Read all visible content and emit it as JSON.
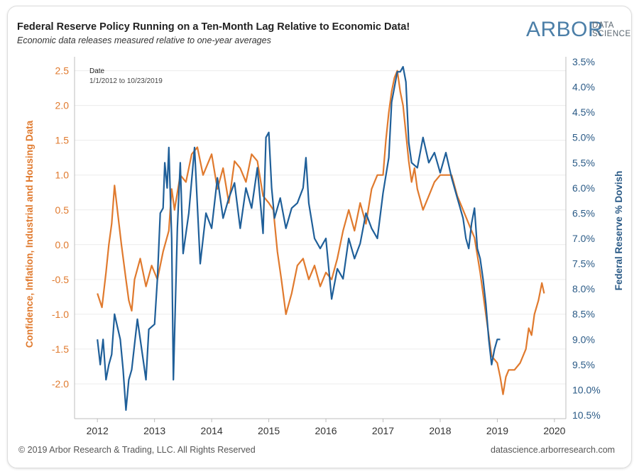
{
  "header": {
    "title": "Federal Reserve Policy Running on a Ten-Month Lag Relative to Economic Data!",
    "subtitle": "Economic data releases measured relative to one-year averages"
  },
  "logo": {
    "main": "ARBOR",
    "sub_line1": "DATA",
    "sub_line2": "SCIENCE"
  },
  "footer": {
    "copyright": "© 2019 Arbor Research & Trading, LLC. All Rights Reserved",
    "website": "datascience.arborresearch.com"
  },
  "colors": {
    "left_series": "#e07a2e",
    "right_series": "#1f5f99",
    "axis_text_left": "#e07a2e",
    "axis_text_right": "#2a5a86"
  },
  "chart_data": {
    "type": "line",
    "title": "Federal Reserve Policy Running on a Ten-Month Lag Relative to Economic Data!",
    "date_filter": {
      "label": "Date",
      "range": "1/1/2012 to 10/23/2019"
    },
    "x_ticks": [
      "2012",
      "2013",
      "2014",
      "2015",
      "2016",
      "2017",
      "2018",
      "2019",
      "2020"
    ],
    "y_left": {
      "label": "Confidence, Inflation, Industrial and Housing Data",
      "ticks": [
        "2.5",
        "2.0",
        "1.5",
        "1.0",
        "0.5",
        "0.0",
        "-0.5",
        "-1.0",
        "-1.5",
        "-2.0"
      ],
      "range": [
        -2.5,
        2.7
      ]
    },
    "y_right": {
      "label": "Federal Reserve % Dovish",
      "ticks": [
        "3.5%",
        "4.0%",
        "4.5%",
        "5.0%",
        "5.5%",
        "6.0%",
        "6.5%",
        "7.0%",
        "7.5%",
        "8.0%",
        "8.5%",
        "9.0%",
        "9.5%",
        "10.0%",
        "10.5%"
      ],
      "range": [
        10.5,
        3.5
      ],
      "inverted": true
    },
    "series": [
      {
        "name": "Confidence, Inflation, Industrial and Housing Data",
        "axis": "left",
        "x": [
          2012.0,
          2012.08,
          2012.15,
          2012.2,
          2012.25,
          2012.3,
          2012.35,
          2012.42,
          2012.5,
          2012.55,
          2012.6,
          2012.65,
          2012.75,
          2012.85,
          2012.95,
          2013.05,
          2013.15,
          2013.25,
          2013.3,
          2013.35,
          2013.45,
          2013.55,
          2013.65,
          2013.75,
          2013.85,
          2013.95,
          2014.0,
          2014.1,
          2014.2,
          2014.3,
          2014.4,
          2014.5,
          2014.6,
          2014.7,
          2014.8,
          2014.9,
          2015.0,
          2015.08,
          2015.15,
          2015.22,
          2015.3,
          2015.4,
          2015.5,
          2015.6,
          2015.7,
          2015.8,
          2015.9,
          2016.0,
          2016.1,
          2016.2,
          2016.3,
          2016.4,
          2016.5,
          2016.6,
          2016.7,
          2016.8,
          2016.9,
          2017.0,
          2017.05,
          2017.1,
          2017.15,
          2017.2,
          2017.25,
          2017.3,
          2017.35,
          2017.4,
          2017.45,
          2017.5,
          2017.55,
          2017.6,
          2017.7,
          2017.8,
          2017.9,
          2018.0,
          2018.1,
          2018.2,
          2018.3,
          2018.4,
          2018.5,
          2018.6,
          2018.7,
          2018.8,
          2018.9,
          2019.0,
          2019.05,
          2019.1,
          2019.15,
          2019.2,
          2019.3,
          2019.4,
          2019.5,
          2019.55,
          2019.6,
          2019.65,
          2019.72,
          2019.78,
          2019.82
        ],
        "values": [
          -0.7,
          -0.9,
          -0.4,
          0.0,
          0.3,
          0.85,
          0.5,
          0.0,
          -0.5,
          -0.8,
          -0.95,
          -0.5,
          -0.2,
          -0.6,
          -0.3,
          -0.5,
          -0.1,
          0.2,
          0.8,
          0.5,
          1.0,
          0.9,
          1.3,
          1.4,
          1.0,
          1.2,
          1.3,
          0.8,
          1.1,
          0.6,
          1.2,
          1.1,
          0.9,
          1.3,
          1.2,
          0.7,
          0.6,
          0.5,
          -0.1,
          -0.5,
          -1.0,
          -0.7,
          -0.3,
          -0.2,
          -0.5,
          -0.3,
          -0.6,
          -0.4,
          -0.5,
          -0.2,
          0.2,
          0.5,
          0.2,
          0.6,
          0.3,
          0.8,
          1.0,
          1.0,
          1.5,
          1.9,
          2.2,
          2.4,
          2.5,
          2.2,
          2.0,
          1.6,
          1.2,
          0.9,
          1.1,
          0.8,
          0.5,
          0.7,
          0.9,
          1.0,
          1.0,
          1.0,
          0.7,
          0.5,
          0.3,
          0.1,
          -0.4,
          -1.0,
          -1.6,
          -1.7,
          -1.9,
          -2.15,
          -1.9,
          -1.8,
          -1.8,
          -1.7,
          -1.5,
          -1.2,
          -1.3,
          -1.0,
          -0.8,
          -0.55,
          -0.7
        ]
      },
      {
        "name": "Federal Reserve % Dovish",
        "axis": "right",
        "x": [
          2012.0,
          2012.05,
          2012.1,
          2012.15,
          2012.2,
          2012.25,
          2012.3,
          2012.4,
          2012.45,
          2012.5,
          2012.55,
          2012.6,
          2012.7,
          2012.8,
          2012.85,
          2012.9,
          2013.0,
          2013.05,
          2013.1,
          2013.15,
          2013.18,
          2013.22,
          2013.25,
          2013.3,
          2013.33,
          2013.4,
          2013.45,
          2013.5,
          2013.6,
          2013.7,
          2013.8,
          2013.9,
          2014.0,
          2014.1,
          2014.2,
          2014.3,
          2014.4,
          2014.5,
          2014.6,
          2014.7,
          2014.8,
          2014.9,
          2014.95,
          2015.0,
          2015.05,
          2015.1,
          2015.2,
          2015.3,
          2015.4,
          2015.5,
          2015.6,
          2015.65,
          2015.7,
          2015.8,
          2015.9,
          2016.0,
          2016.1,
          2016.2,
          2016.3,
          2016.4,
          2016.5,
          2016.6,
          2016.7,
          2016.8,
          2016.9,
          2017.0,
          2017.1,
          2017.15,
          2017.2,
          2017.25,
          2017.3,
          2017.35,
          2017.4,
          2017.45,
          2017.5,
          2017.6,
          2017.7,
          2017.8,
          2017.9,
          2018.0,
          2018.1,
          2018.2,
          2018.3,
          2018.4,
          2018.45,
          2018.5,
          2018.55,
          2018.6,
          2018.65,
          2018.7,
          2018.75,
          2018.8,
          2018.85,
          2018.9,
          2018.95,
          2019.0,
          2019.05
        ],
        "values": [
          9.0,
          9.5,
          9.0,
          9.8,
          9.5,
          9.3,
          8.5,
          9.0,
          9.6,
          10.4,
          9.8,
          9.6,
          8.6,
          9.4,
          9.8,
          8.8,
          8.7,
          7.8,
          6.5,
          6.4,
          5.5,
          6.0,
          5.2,
          7.0,
          9.8,
          6.8,
          5.5,
          7.3,
          6.5,
          5.2,
          7.5,
          6.5,
          6.8,
          5.8,
          6.6,
          6.2,
          5.9,
          6.8,
          6.0,
          6.4,
          5.6,
          6.9,
          5.0,
          4.9,
          6.0,
          6.6,
          6.2,
          6.8,
          6.4,
          6.3,
          6.0,
          5.4,
          6.3,
          7.0,
          7.2,
          7.0,
          8.2,
          7.6,
          7.8,
          7.0,
          7.4,
          7.1,
          6.5,
          6.8,
          7.0,
          6.1,
          5.4,
          4.3,
          4.0,
          3.7,
          3.7,
          3.6,
          3.9,
          5.1,
          5.5,
          5.6,
          5.0,
          5.5,
          5.3,
          5.7,
          5.3,
          5.8,
          6.2,
          6.6,
          7.0,
          7.2,
          6.7,
          6.4,
          7.2,
          7.4,
          7.8,
          8.3,
          9.0,
          9.5,
          9.2,
          9.0,
          9.0
        ]
      }
    ],
    "grid": true,
    "legend": "none"
  }
}
